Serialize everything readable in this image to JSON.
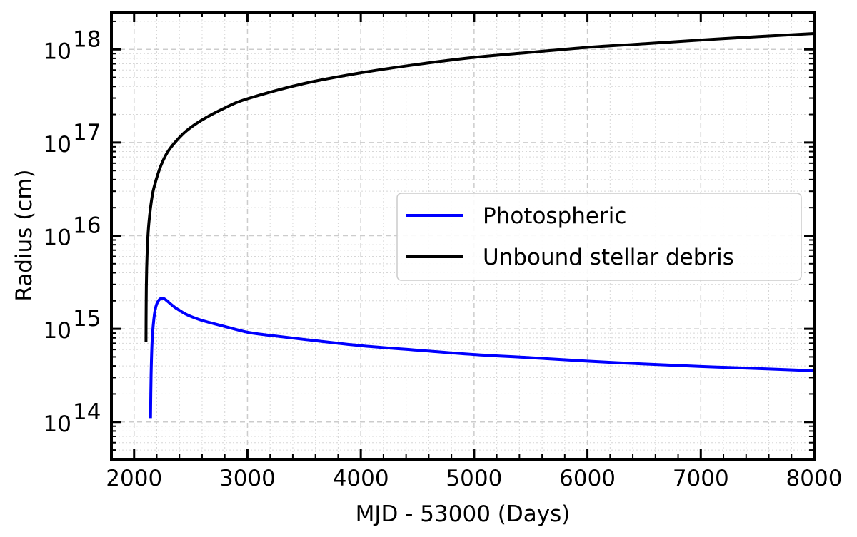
{
  "chart_data": {
    "type": "line",
    "xlabel": "MJD - 53000 (Days)",
    "ylabel": "Radius (cm)",
    "xlim": [
      1800,
      8000
    ],
    "ylim_log10": [
      13.6,
      18.4
    ],
    "yscale": "log",
    "grid": true,
    "legend_placement": "right",
    "x_ticks": [
      {
        "value": 2000,
        "label": "2000"
      },
      {
        "value": 3000,
        "label": "3000"
      },
      {
        "value": 4000,
        "label": "4000"
      },
      {
        "value": 5000,
        "label": "5000"
      },
      {
        "value": 6000,
        "label": "6000"
      },
      {
        "value": 7000,
        "label": "7000"
      },
      {
        "value": 8000,
        "label": "8000"
      }
    ],
    "y_ticks": [
      {
        "exp": 14,
        "base": "10",
        "sup": "14"
      },
      {
        "exp": 15,
        "base": "10",
        "sup": "15"
      },
      {
        "exp": 16,
        "base": "10",
        "sup": "16"
      },
      {
        "exp": 17,
        "base": "10",
        "sup": "17"
      },
      {
        "exp": 18,
        "base": "10",
        "sup": "18"
      }
    ],
    "series": [
      {
        "name": "Photospheric",
        "color": "#0000ff",
        "x": [
          2145,
          2150,
          2160,
          2180,
          2200,
          2230,
          2260,
          2290,
          2320,
          2360,
          2400,
          2450,
          2500,
          2600,
          2700,
          2800,
          3000,
          3200,
          3500,
          4000,
          4500,
          5000,
          5500,
          6000,
          6500,
          7000,
          7500,
          8000
        ],
        "y": [
          110000000000000.0,
          320000000000000.0,
          780000000000000.0,
          1450000000000000.0,
          1850000000000000.0,
          2100000000000000.0,
          2120000000000000.0,
          2000000000000000.0,
          1860000000000000.0,
          1700000000000000.0,
          1580000000000000.0,
          1450000000000000.0,
          1360000000000000.0,
          1230000000000000.0,
          1140000000000000.0,
          1060000000000000.0,
          920000000000000.0,
          850000000000000.0,
          770000000000000.0,
          660000000000000.0,
          590000000000000.0,
          530000000000000.0,
          490000000000000.0,
          450000000000000.0,
          420000000000000.0,
          395000000000000.0,
          375000000000000.0,
          355000000000000.0
        ]
      },
      {
        "name": "Unbound stellar debris",
        "color": "#000000",
        "x": [
          2105,
          2106,
          2108,
          2111,
          2115,
          2120,
          2130,
          2145,
          2165,
          2195,
          2235,
          2290,
          2360,
          2460,
          2600,
          2800,
          3000,
          3500,
          4000,
          4500,
          5000,
          5500,
          6000,
          6500,
          7000,
          7500,
          8000
        ],
        "y": [
          720000000000000.0,
          1400000000000000.0,
          2800000000000000.0,
          4500000000000000.0,
          6500000000000000.0,
          9000000000000000.0,
          1.35e+16,
          2e+16,
          2.9e+16,
          4e+16,
          5.6e+16,
          7.7e+16,
          1e+17,
          1.33e+17,
          1.75e+17,
          2.35e+17,
          2.95e+17,
          4.3e+17,
          5.6e+17,
          6.9e+17,
          8.2e+17,
          9.3e+17,
          1.05e+18,
          1.15e+18,
          1.26e+18,
          1.37e+18,
          1.48e+18
        ]
      }
    ]
  }
}
